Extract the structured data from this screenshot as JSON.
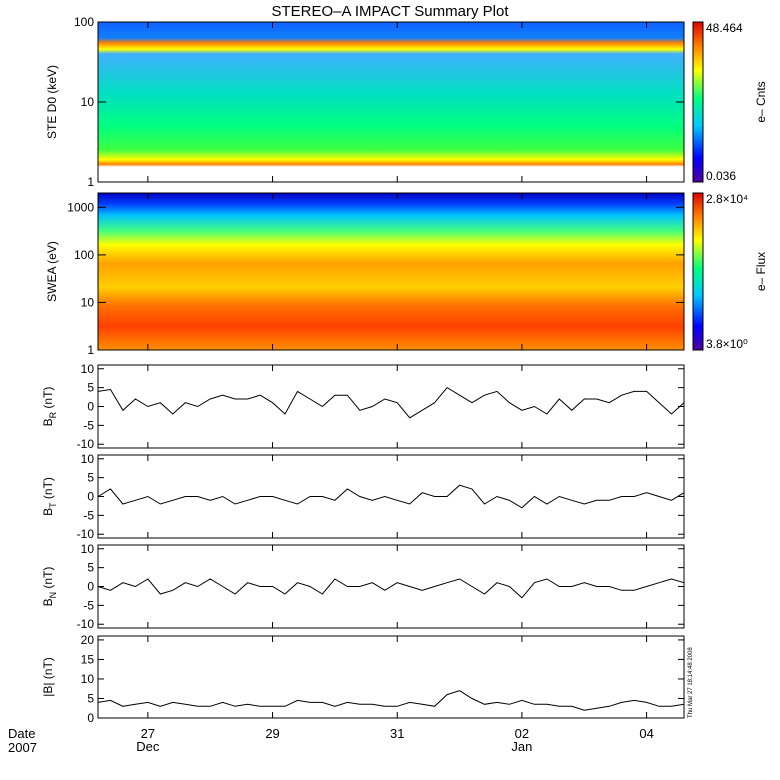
{
  "title": "STEREO–A IMPACT Summary Plot",
  "date_label": "Date",
  "year_label": "2007",
  "stamp": "Thu Mar 27 18:14:48 2008",
  "x_axis": {
    "ticks": [
      {
        "label": "27",
        "day": 1
      },
      {
        "label": "29",
        "day": 3
      },
      {
        "label": "31",
        "day": 5
      },
      {
        "label": "02",
        "day": 7
      },
      {
        "label": "04",
        "day": 9
      }
    ],
    "month_labels": [
      {
        "label": "Dec",
        "day": 1
      },
      {
        "label": "Jan",
        "day": 7
      }
    ],
    "range": [
      0.2,
      9.6
    ]
  },
  "chart_data": [
    {
      "type": "heatmap",
      "ylabel": "STE D0 (keV)",
      "yscale": "log",
      "ylim": [
        1,
        100
      ],
      "yticks": [
        "1",
        "10",
        "100"
      ],
      "colorbar": {
        "max": "48.464",
        "min": "0.036",
        "label": "e– Cnts"
      },
      "colors": [
        "#5000a0",
        "#0000ff",
        "#00c8ff",
        "#00ff80",
        "#ffff00",
        "#ff8000",
        "#e00000"
      ]
    },
    {
      "type": "heatmap",
      "ylabel": "SWEA (eV)",
      "yscale": "log",
      "ylim": [
        1,
        2000
      ],
      "yticks": [
        "1",
        "10",
        "100",
        "1000"
      ],
      "colorbar": {
        "max": "2.8×10⁴",
        "min": "3.8×10⁰",
        "label": "e– Flux"
      },
      "colors": [
        "#5000a0",
        "#0000ff",
        "#00c8ff",
        "#00ff80",
        "#ffff00",
        "#ff8000",
        "#e00000"
      ]
    },
    {
      "type": "line",
      "ylabel_main": "B",
      "ylabel_sub": "R",
      "ylabel_unit": " (nT)",
      "ylim": [
        -11,
        11
      ],
      "yticks": [
        "10",
        "5",
        "0",
        "-5",
        "-10"
      ],
      "series": [
        {
          "x": [
            0.2,
            0.4,
            0.6,
            0.8,
            1.0,
            1.2,
            1.4,
            1.6,
            1.8,
            2.0,
            2.2,
            2.4,
            2.6,
            2.8,
            3.0,
            3.2,
            3.4,
            3.6,
            3.8,
            4.0,
            4.2,
            4.4,
            4.6,
            4.8,
            5.0,
            5.2,
            5.4,
            5.6,
            5.8,
            6.0,
            6.2,
            6.4,
            6.6,
            6.8,
            7.0,
            7.2,
            7.4,
            7.6,
            7.8,
            8.0,
            8.2,
            8.4,
            8.6,
            8.8,
            9.0,
            9.2,
            9.4,
            9.6
          ],
          "y": [
            4,
            4.5,
            -1,
            2,
            0,
            1,
            -2,
            1,
            0,
            2,
            3,
            2,
            2,
            3,
            1,
            -2,
            4,
            2,
            0,
            3,
            3,
            -1,
            0,
            2,
            1,
            -3,
            -1,
            1,
            5,
            3,
            1,
            3,
            4,
            1,
            -1,
            0,
            -2,
            2,
            -1,
            2,
            2,
            1,
            3,
            4,
            4,
            1,
            -2,
            1
          ]
        }
      ]
    },
    {
      "type": "line",
      "ylabel_main": "B",
      "ylabel_sub": "T",
      "ylabel_unit": " (nT)",
      "ylim": [
        -11,
        11
      ],
      "yticks": [
        "10",
        "5",
        "0",
        "-5",
        "-10"
      ],
      "series": [
        {
          "x": [
            0.2,
            0.4,
            0.6,
            0.8,
            1.0,
            1.2,
            1.4,
            1.6,
            1.8,
            2.0,
            2.2,
            2.4,
            2.6,
            2.8,
            3.0,
            3.2,
            3.4,
            3.6,
            3.8,
            4.0,
            4.2,
            4.4,
            4.6,
            4.8,
            5.0,
            5.2,
            5.4,
            5.6,
            5.8,
            6.0,
            6.2,
            6.4,
            6.6,
            6.8,
            7.0,
            7.2,
            7.4,
            7.6,
            7.8,
            8.0,
            8.2,
            8.4,
            8.6,
            8.8,
            9.0,
            9.2,
            9.4,
            9.6
          ],
          "y": [
            0,
            2,
            -2,
            -1,
            0,
            -2,
            -1,
            0,
            0,
            -1,
            0,
            -2,
            -1,
            0,
            0,
            -1,
            -2,
            0,
            0,
            -1,
            2,
            0,
            -1,
            0,
            -1,
            -2,
            1,
            0,
            0,
            3,
            2,
            -2,
            0,
            -1,
            -3,
            0,
            -2,
            0,
            -1,
            -2,
            -1,
            -1,
            0,
            0,
            1,
            0,
            -1,
            1
          ]
        }
      ]
    },
    {
      "type": "line",
      "ylabel_main": "B",
      "ylabel_sub": "N",
      "ylabel_unit": " (nT)",
      "ylim": [
        -11,
        11
      ],
      "yticks": [
        "10",
        "5",
        "0",
        "-5",
        "-10"
      ],
      "series": [
        {
          "x": [
            0.2,
            0.4,
            0.6,
            0.8,
            1.0,
            1.2,
            1.4,
            1.6,
            1.8,
            2.0,
            2.2,
            2.4,
            2.6,
            2.8,
            3.0,
            3.2,
            3.4,
            3.6,
            3.8,
            4.0,
            4.2,
            4.4,
            4.6,
            4.8,
            5.0,
            5.2,
            5.4,
            5.6,
            5.8,
            6.0,
            6.2,
            6.4,
            6.6,
            6.8,
            7.0,
            7.2,
            7.4,
            7.6,
            7.8,
            8.0,
            8.2,
            8.4,
            8.6,
            8.8,
            9.0,
            9.2,
            9.4,
            9.6
          ],
          "y": [
            0,
            -1,
            1,
            0,
            2,
            -2,
            -1,
            1,
            0,
            2,
            0,
            -2,
            1,
            0,
            0,
            -2,
            1,
            0,
            -2,
            2,
            0,
            0,
            1,
            -1,
            1,
            0,
            -1,
            0,
            1,
            2,
            0,
            -2,
            1,
            0,
            -3,
            1,
            2,
            0,
            0,
            1,
            0,
            0,
            -1,
            -1,
            0,
            1,
            2,
            1
          ]
        }
      ]
    },
    {
      "type": "line",
      "ylabel_main": "|B|",
      "ylabel_sub": "",
      "ylabel_unit": " (nT)",
      "ylim": [
        0,
        21
      ],
      "yticks": [
        "20",
        "15",
        "10",
        "5",
        "0"
      ],
      "series": [
        {
          "x": [
            0.2,
            0.4,
            0.6,
            0.8,
            1.0,
            1.2,
            1.4,
            1.6,
            1.8,
            2.0,
            2.2,
            2.4,
            2.6,
            2.8,
            3.0,
            3.2,
            3.4,
            3.6,
            3.8,
            4.0,
            4.2,
            4.4,
            4.6,
            4.8,
            5.0,
            5.2,
            5.4,
            5.6,
            5.8,
            6.0,
            6.2,
            6.4,
            6.6,
            6.8,
            7.0,
            7.2,
            7.4,
            7.6,
            7.8,
            8.0,
            8.2,
            8.4,
            8.6,
            8.8,
            9.0,
            9.2,
            9.4,
            9.6
          ],
          "y": [
            4,
            4.5,
            3,
            3.5,
            4,
            3,
            4,
            3.5,
            3,
            3,
            4,
            3,
            3.5,
            3,
            3,
            3,
            4.5,
            4,
            4,
            3,
            4,
            3.5,
            3.5,
            3,
            3,
            4,
            3.5,
            3,
            6,
            7,
            5,
            3.5,
            4,
            3.5,
            4.5,
            3.5,
            3.5,
            3,
            3,
            2,
            2.5,
            3,
            4,
            4.5,
            4,
            3,
            3,
            3.5
          ]
        }
      ]
    }
  ]
}
